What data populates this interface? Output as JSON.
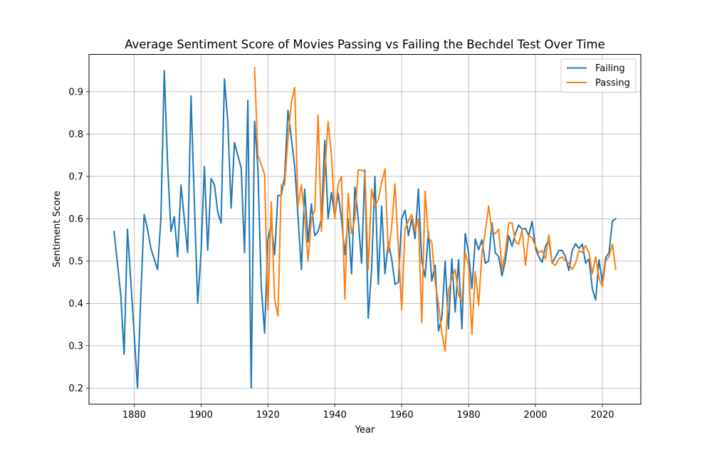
{
  "chart_data": {
    "type": "line",
    "title": "Average Sentiment Score of Movies Passing vs Failing the Bechdel Test Over Time",
    "xlabel": "Year",
    "ylabel": "Sentiment Score",
    "xlim": [
      1866.5,
      2031.5
    ],
    "ylim": [
      0.162,
      0.988
    ],
    "x_ticks": [
      1880,
      1900,
      1920,
      1940,
      1960,
      1980,
      2000,
      2020
    ],
    "y_ticks": [
      0.2,
      0.3,
      0.4,
      0.5,
      0.6,
      0.7,
      0.8,
      0.9
    ],
    "grid": true,
    "legend": "upper right",
    "series": [
      {
        "name": "Failing",
        "color": "#1f77b4",
        "points": [
          [
            1874,
            0.57
          ],
          [
            1876,
            0.42
          ],
          [
            1877,
            0.28
          ],
          [
            1878,
            0.575
          ],
          [
            1880,
            0.33
          ],
          [
            1881,
            0.2
          ],
          [
            1882,
            0.42
          ],
          [
            1883,
            0.61
          ],
          [
            1884,
            0.575
          ],
          [
            1885,
            0.53
          ],
          [
            1887,
            0.48
          ],
          [
            1888,
            0.6
          ],
          [
            1889,
            0.95
          ],
          [
            1890,
            0.73
          ],
          [
            1891,
            0.57
          ],
          [
            1892,
            0.605
          ],
          [
            1893,
            0.51
          ],
          [
            1894,
            0.68
          ],
          [
            1895,
            0.6
          ],
          [
            1896,
            0.52
          ],
          [
            1897,
            0.89
          ],
          [
            1898,
            0.64
          ],
          [
            1899,
            0.4
          ],
          [
            1900,
            0.52
          ],
          [
            1901,
            0.723
          ],
          [
            1902,
            0.525
          ],
          [
            1903,
            0.695
          ],
          [
            1904,
            0.68
          ],
          [
            1905,
            0.615
          ],
          [
            1906,
            0.59
          ],
          [
            1907,
            0.93
          ],
          [
            1908,
            0.83
          ],
          [
            1909,
            0.625
          ],
          [
            1910,
            0.78
          ],
          [
            1911,
            0.75
          ],
          [
            1912,
            0.72
          ],
          [
            1913,
            0.52
          ],
          [
            1914,
            0.88
          ],
          [
            1915,
            0.2
          ],
          [
            1916,
            0.83
          ],
          [
            1917,
            0.72
          ],
          [
            1918,
            0.44
          ],
          [
            1919,
            0.33
          ],
          [
            1920,
            0.55
          ],
          [
            1921,
            0.59
          ],
          [
            1922,
            0.515
          ],
          [
            1923,
            0.655
          ],
          [
            1924,
            0.655
          ],
          [
            1925,
            0.7
          ],
          [
            1926,
            0.856
          ],
          [
            1927,
            0.79
          ],
          [
            1928,
            0.725
          ],
          [
            1929,
            0.605
          ],
          [
            1930,
            0.48
          ],
          [
            1931,
            0.67
          ],
          [
            1932,
            0.545
          ],
          [
            1933,
            0.635
          ],
          [
            1934,
            0.56
          ],
          [
            1935,
            0.57
          ],
          [
            1936,
            0.6
          ],
          [
            1937,
            0.785
          ],
          [
            1938,
            0.6
          ],
          [
            1939,
            0.662
          ],
          [
            1940,
            0.605
          ],
          [
            1941,
            0.66
          ],
          [
            1942,
            0.6
          ],
          [
            1943,
            0.515
          ],
          [
            1944,
            0.6
          ],
          [
            1945,
            0.47
          ],
          [
            1946,
            0.675
          ],
          [
            1947,
            0.6
          ],
          [
            1948,
            0.495
          ],
          [
            1949,
            0.715
          ],
          [
            1950,
            0.365
          ],
          [
            1951,
            0.48
          ],
          [
            1952,
            0.7
          ],
          [
            1953,
            0.445
          ],
          [
            1954,
            0.63
          ],
          [
            1955,
            0.47
          ],
          [
            1956,
            0.545
          ],
          [
            1957,
            0.505
          ],
          [
            1958,
            0.445
          ],
          [
            1959,
            0.45
          ],
          [
            1960,
            0.6
          ],
          [
            1961,
            0.62
          ],
          [
            1962,
            0.56
          ],
          [
            1963,
            0.6
          ],
          [
            1964,
            0.553
          ],
          [
            1965,
            0.67
          ],
          [
            1966,
            0.5
          ],
          [
            1967,
            0.462
          ],
          [
            1968,
            0.57
          ],
          [
            1969,
            0.453
          ],
          [
            1970,
            0.49
          ],
          [
            1971,
            0.335
          ],
          [
            1972,
            0.365
          ],
          [
            1973,
            0.5
          ],
          [
            1974,
            0.34
          ],
          [
            1975,
            0.505
          ],
          [
            1976,
            0.38
          ],
          [
            1977,
            0.503
          ],
          [
            1978,
            0.34
          ],
          [
            1979,
            0.565
          ],
          [
            1980,
            0.52
          ],
          [
            1981,
            0.435
          ],
          [
            1982,
            0.552
          ],
          [
            1983,
            0.527
          ],
          [
            1984,
            0.55
          ],
          [
            1985,
            0.495
          ],
          [
            1986,
            0.5
          ],
          [
            1987,
            0.59
          ],
          [
            1988,
            0.52
          ],
          [
            1989,
            0.51
          ],
          [
            1990,
            0.465
          ],
          [
            1991,
            0.5
          ],
          [
            1992,
            0.56
          ],
          [
            1993,
            0.535
          ],
          [
            1994,
            0.565
          ],
          [
            1995,
            0.585
          ],
          [
            1996,
            0.575
          ],
          [
            1997,
            0.577
          ],
          [
            1998,
            0.56
          ],
          [
            1999,
            0.594
          ],
          [
            2000,
            0.53
          ],
          [
            2001,
            0.51
          ],
          [
            2002,
            0.497
          ],
          [
            2003,
            0.535
          ],
          [
            2004,
            0.55
          ],
          [
            2005,
            0.495
          ],
          [
            2006,
            0.51
          ],
          [
            2007,
            0.525
          ],
          [
            2008,
            0.525
          ],
          [
            2009,
            0.51
          ],
          [
            2010,
            0.478
          ],
          [
            2011,
            0.525
          ],
          [
            2012,
            0.541
          ],
          [
            2013,
            0.53
          ],
          [
            2014,
            0.54
          ],
          [
            2015,
            0.495
          ],
          [
            2016,
            0.505
          ],
          [
            2017,
            0.435
          ],
          [
            2018,
            0.408
          ],
          [
            2019,
            0.503
          ],
          [
            2020,
            0.45
          ],
          [
            2021,
            0.508
          ],
          [
            2022,
            0.52
          ],
          [
            2023,
            0.594
          ],
          [
            2024,
            0.6
          ]
        ]
      },
      {
        "name": "Passing",
        "color": "#ff7f0e",
        "points": [
          [
            1916,
            0.957
          ],
          [
            1917,
            0.75
          ],
          [
            1918,
            0.728
          ],
          [
            1919,
            0.705
          ],
          [
            1920,
            0.385
          ],
          [
            1921,
            0.64
          ],
          [
            1922,
            0.41
          ],
          [
            1923,
            0.37
          ],
          [
            1924,
            0.68
          ],
          [
            1925,
            0.68
          ],
          [
            1926,
            0.79
          ],
          [
            1927,
            0.875
          ],
          [
            1928,
            0.91
          ],
          [
            1929,
            0.63
          ],
          [
            1930,
            0.68
          ],
          [
            1931,
            0.605
          ],
          [
            1932,
            0.5
          ],
          [
            1933,
            0.6
          ],
          [
            1934,
            0.62
          ],
          [
            1935,
            0.845
          ],
          [
            1936,
            0.57
          ],
          [
            1937,
            0.71
          ],
          [
            1938,
            0.83
          ],
          [
            1939,
            0.75
          ],
          [
            1940,
            0.6
          ],
          [
            1941,
            0.68
          ],
          [
            1942,
            0.7
          ],
          [
            1943,
            0.41
          ],
          [
            1944,
            0.66
          ],
          [
            1945,
            0.565
          ],
          [
            1946,
            0.6
          ],
          [
            1947,
            0.715
          ],
          [
            1948,
            0.715
          ],
          [
            1949,
            0.71
          ],
          [
            1950,
            0.48
          ],
          [
            1951,
            0.67
          ],
          [
            1952,
            0.63
          ],
          [
            1953,
            0.645
          ],
          [
            1954,
            0.685
          ],
          [
            1955,
            0.718
          ],
          [
            1956,
            0.52
          ],
          [
            1957,
            0.58
          ],
          [
            1958,
            0.682
          ],
          [
            1959,
            0.53
          ],
          [
            1960,
            0.385
          ],
          [
            1961,
            0.575
          ],
          [
            1962,
            0.595
          ],
          [
            1963,
            0.61
          ],
          [
            1964,
            0.57
          ],
          [
            1965,
            0.6
          ],
          [
            1966,
            0.355
          ],
          [
            1967,
            0.665
          ],
          [
            1968,
            0.555
          ],
          [
            1969,
            0.545
          ],
          [
            1970,
            0.45
          ],
          [
            1971,
            0.4
          ],
          [
            1972,
            0.33
          ],
          [
            1973,
            0.287
          ],
          [
            1974,
            0.43
          ],
          [
            1975,
            0.46
          ],
          [
            1976,
            0.48
          ],
          [
            1977,
            0.42
          ],
          [
            1978,
            0.405
          ],
          [
            1979,
            0.52
          ],
          [
            1980,
            0.49
          ],
          [
            1981,
            0.327
          ],
          [
            1982,
            0.475
          ],
          [
            1983,
            0.395
          ],
          [
            1984,
            0.52
          ],
          [
            1985,
            0.57
          ],
          [
            1986,
            0.63
          ],
          [
            1987,
            0.57
          ],
          [
            1988,
            0.565
          ],
          [
            1989,
            0.575
          ],
          [
            1990,
            0.48
          ],
          [
            1991,
            0.52
          ],
          [
            1992,
            0.59
          ],
          [
            1993,
            0.59
          ],
          [
            1994,
            0.545
          ],
          [
            1995,
            0.54
          ],
          [
            1996,
            0.575
          ],
          [
            1997,
            0.49
          ],
          [
            1998,
            0.56
          ],
          [
            1999,
            0.555
          ],
          [
            2000,
            0.535
          ],
          [
            2001,
            0.52
          ],
          [
            2002,
            0.525
          ],
          [
            2003,
            0.505
          ],
          [
            2004,
            0.562
          ],
          [
            2005,
            0.495
          ],
          [
            2006,
            0.49
          ],
          [
            2007,
            0.505
          ],
          [
            2008,
            0.51
          ],
          [
            2009,
            0.5
          ],
          [
            2010,
            0.495
          ],
          [
            2011,
            0.48
          ],
          [
            2012,
            0.495
          ],
          [
            2013,
            0.525
          ],
          [
            2014,
            0.52
          ],
          [
            2015,
            0.537
          ],
          [
            2016,
            0.52
          ],
          [
            2017,
            0.47
          ],
          [
            2018,
            0.51
          ],
          [
            2019,
            0.46
          ],
          [
            2020,
            0.44
          ],
          [
            2021,
            0.5
          ],
          [
            2022,
            0.51
          ],
          [
            2023,
            0.54
          ],
          [
            2024,
            0.48
          ]
        ]
      }
    ]
  }
}
